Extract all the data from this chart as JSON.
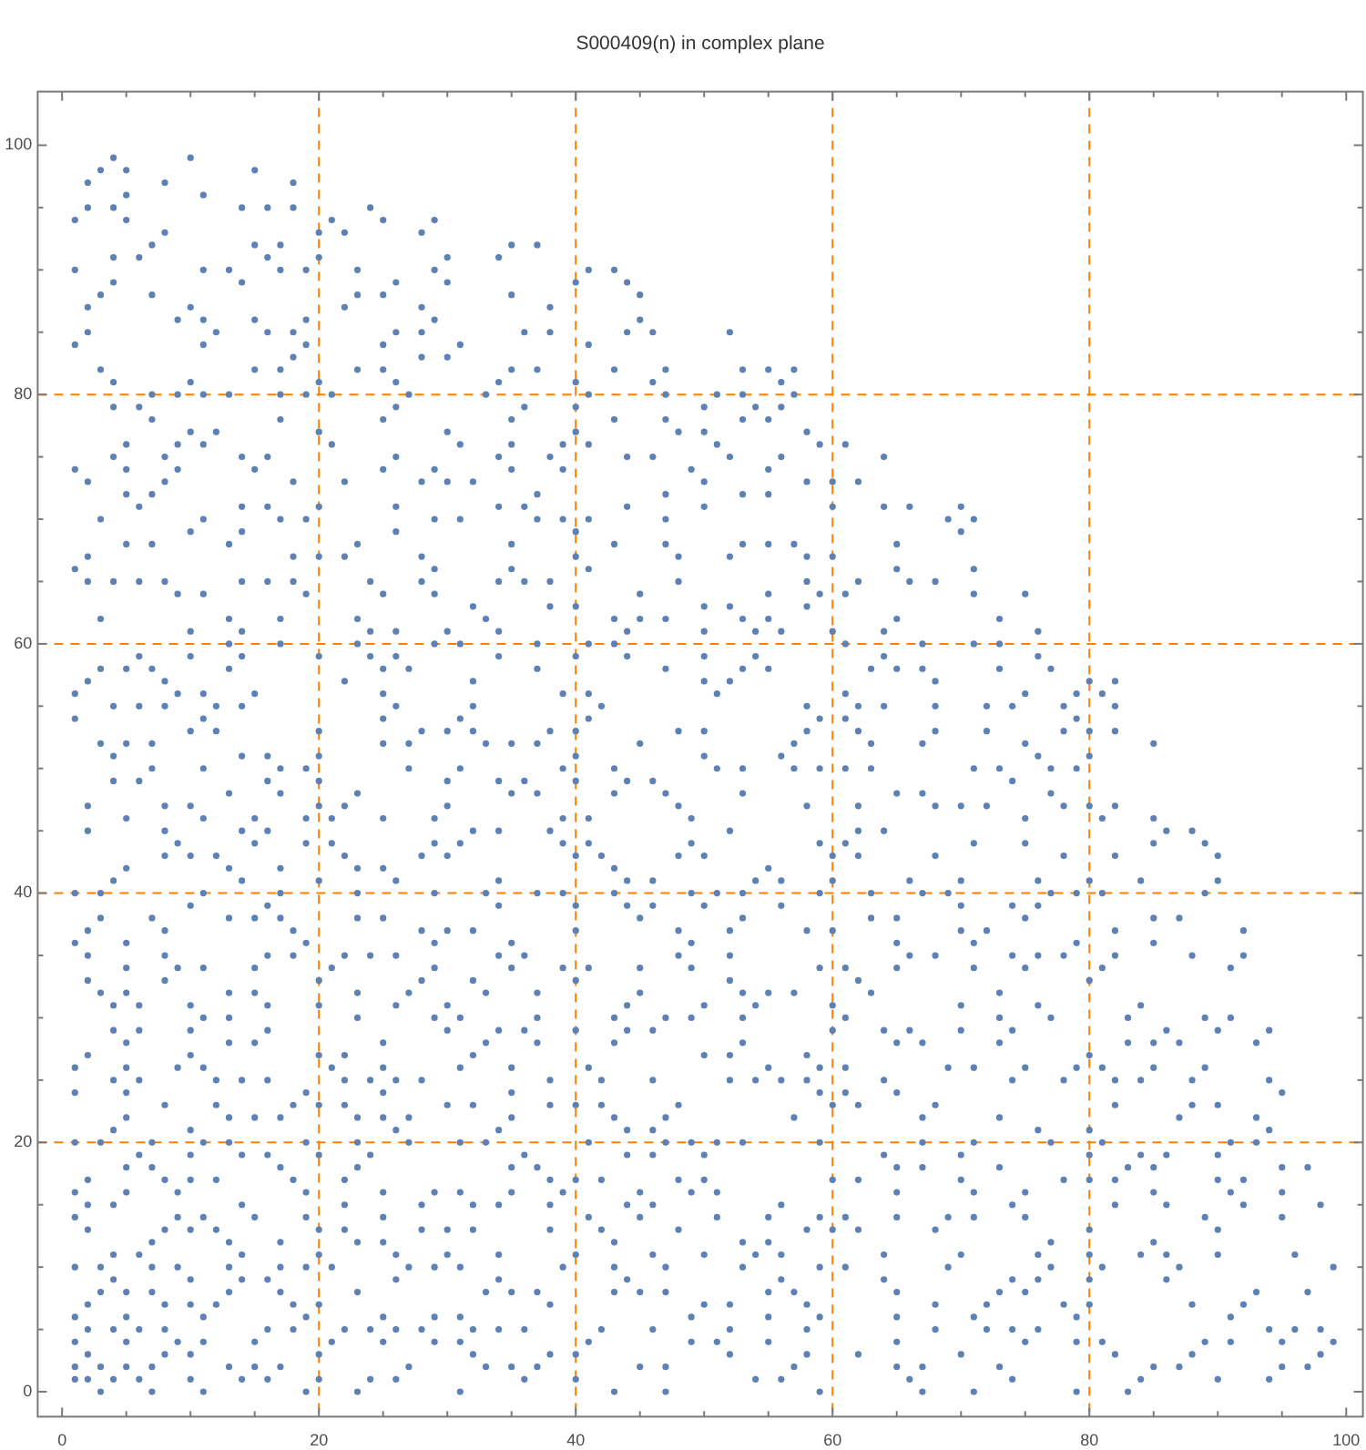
{
  "chart_data": {
    "type": "scatter",
    "title": "S000409(n) in complex plane",
    "color": "#5e81b5",
    "marker": "circle",
    "grid": true,
    "xlim": [
      -1.9,
      101.3
    ],
    "ylim": [
      -2,
      104.3
    ],
    "xticks": [
      0,
      {
        "value": 5,
        "label": null
      },
      {
        "value": 10,
        "label": null
      },
      {
        "value": 15,
        "label": null
      },
      20,
      {
        "value": 25,
        "label": null
      },
      {
        "value": 30,
        "label": null
      },
      {
        "value": 35,
        "label": null
      },
      40,
      {
        "value": 45,
        "label": null
      },
      {
        "value": 50,
        "label": null
      },
      {
        "value": 55,
        "label": null
      },
      60,
      {
        "value": 65,
        "label": null
      },
      {
        "value": 70,
        "label": null
      },
      {
        "value": 75,
        "label": null
      },
      80,
      {
        "value": 85,
        "label": null
      },
      {
        "value": 90,
        "label": null
      },
      {
        "value": 95,
        "label": null
      },
      100
    ],
    "yticks": [
      0,
      {
        "value": 5,
        "label": null
      },
      {
        "value": 10,
        "label": null
      },
      {
        "value": 15,
        "label": null
      },
      20,
      {
        "value": 25,
        "label": null
      },
      {
        "value": 30,
        "label": null
      },
      {
        "value": 35,
        "label": null
      },
      40,
      {
        "value": 45,
        "label": null
      },
      {
        "value": 50,
        "label": null
      },
      {
        "value": 55,
        "label": null
      },
      60,
      {
        "value": 65,
        "label": null
      },
      {
        "value": 70,
        "label": null
      },
      {
        "value": 75,
        "label": null
      },
      80,
      {
        "value": 85,
        "label": null
      },
      {
        "value": 90,
        "label": null
      },
      {
        "value": 95,
        "label": null
      },
      100
    ],
    "x": [
      4,
      10,
      3,
      5,
      15,
      2,
      8,
      18,
      5,
      11,
      2,
      4,
      14,
      16,
      18,
      24,
      1,
      5,
      21,
      25,
      29,
      8,
      20,
      22,
      28,
      7,
      15,
      17,
      35,
      37,
      4,
      6,
      16,
      20,
      30,
      34,
      1,
      11,
      13,
      17,
      19,
      23,
      29,
      41,
      43,
      4,
      14,
      26,
      30,
      40,
      44,
      3,
      7,
      23,
      25,
      35,
      45,
      2,
      10,
      22,
      28,
      38,
      9,
      11,
      15,
      19,
      29,
      45,
      2,
      12,
      16,
      18,
      26,
      28,
      36,
      38,
      44,
      46,
      52,
      1,
      11,
      19,
      25,
      31,
      41,
      18,
      28,
      30,
      3,
      15,
      17,
      23,
      25,
      35,
      37,
      43,
      47,
      53,
      55,
      57,
      4,
      10,
      20,
      26,
      34,
      40,
      46,
      56,
      7,
      9,
      11,
      13,
      17,
      19,
      21,
      27,
      33,
      41,
      47,
      51,
      53,
      57,
      4,
      6,
      26,
      36,
      40,
      50,
      54,
      56,
      7,
      17,
      25,
      35,
      43,
      47,
      53,
      55,
      10,
      12,
      20,
      30,
      40,
      48,
      50,
      58,
      5,
      9,
      11,
      21,
      31,
      35,
      39,
      41,
      51,
      59,
      61,
      4,
      8,
      14,
      16,
      26,
      34,
      38,
      44,
      46,
      52,
      56,
      64,
      1,
      5,
      9,
      15,
      25,
      29,
      35,
      39,
      49,
      55,
      2,
      8,
      18,
      22,
      28,
      30,
      32,
      50,
      58,
      60,
      62,
      5,
      7,
      37,
      47,
      53,
      55,
      6,
      14,
      16,
      20,
      26,
      34,
      36,
      44,
      50,
      60,
      64,
      66,
      70,
      3,
      11,
      17,
      19,
      29,
      31,
      37,
      39,
      41,
      47,
      69,
      71,
      10,
      14,
      26,
      40,
      70,
      5,
      7,
      13,
      23,
      35,
      43,
      47,
      53,
      55,
      57,
      65,
      2,
      18,
      20,
      22,
      28,
      40,
      48,
      52,
      58,
      60,
      1,
      29,
      35,
      41,
      65,
      71,
      2,
      4,
      6,
      8,
      14,
      16,
      18,
      24,
      28,
      34,
      36,
      38,
      48,
      58,
      62,
      66,
      68,
      9,
      11,
      19,
      25,
      29,
      45,
      55,
      59,
      61,
      71,
      75,
      32,
      38,
      40,
      50,
      52,
      58,
      3,
      13,
      17,
      23,
      33,
      43,
      45,
      47,
      53,
      55,
      65,
      73,
      10,
      14,
      24,
      26,
      30,
      34,
      44,
      50,
      54,
      56,
      60,
      64,
      76,
      13,
      17,
      23,
      29,
      31,
      37,
      41,
      43,
      61,
      67,
      71,
      73,
      6,
      10,
      14,
      20,
      24,
      26,
      34,
      40,
      44,
      50,
      54,
      64,
      76,
      3,
      5,
      7,
      13,
      25,
      27,
      37,
      47,
      53,
      55,
      63,
      65,
      67,
      73,
      77,
      2,
      8,
      22,
      32,
      50,
      52,
      68,
      80,
      82,
      1,
      9,
      11,
      15,
      25,
      39,
      41,
      51,
      61,
      75,
      79,
      81,
      4,
      6,
      8,
      12,
      14,
      26,
      32,
      42,
      58,
      62,
      64,
      68,
      72,
      74,
      78,
      82,
      1,
      11,
      25,
      31,
      41,
      59,
      61,
      79,
      10,
      12,
      20,
      28,
      30,
      32,
      38,
      40,
      48,
      50,
      58,
      62,
      68,
      72,
      78,
      80,
      82,
      3,
      5,
      7,
      25,
      27,
      33,
      35,
      37,
      45,
      57,
      63,
      67,
      75,
      85,
      4,
      14,
      16,
      20,
      40,
      50,
      56,
      76,
      80,
      7,
      11,
      17,
      19,
      27,
      31,
      39,
      43,
      51,
      53,
      57,
      59,
      61,
      63,
      71,
      73,
      77,
      79,
      4,
      6,
      16,
      20,
      30,
      34,
      36,
      40,
      44,
      46,
      74,
      13,
      17,
      23,
      35,
      37,
      43,
      47,
      53,
      65,
      67,
      77,
      2,
      8,
      10,
      20,
      22,
      30,
      48,
      58,
      62,
      68,
      70,
      72,
      78,
      80,
      82,
      5,
      11,
      15,
      19,
      21,
      25,
      29,
      39,
      41,
      49,
      75,
      81,
      85,
      2,
      8,
      14,
      16,
      32,
      34,
      38,
      52,
      62,
      64,
      86,
      88,
      9,
      15,
      19,
      21,
      29,
      31,
      39,
      41,
      49,
      59,
      61,
      71,
      75,
      85,
      89,
      8,
      10,
      12,
      22,
      28,
      30,
      40,
      42,
      48,
      50,
      60,
      62,
      68,
      78,
      82,
      90,
      5,
      13,
      17,
      23,
      25,
      43,
      55,
      4,
      14,
      20,
      26,
      34,
      44,
      46,
      54,
      56,
      60,
      66,
      70,
      76,
      80,
      84,
      90,
      1,
      3,
      11,
      17,
      23,
      29,
      33,
      37,
      39,
      43,
      49,
      51,
      53,
      59,
      63,
      67,
      69,
      77,
      79,
      81,
      89,
      10,
      16,
      34,
      40,
      44,
      46,
      50,
      56,
      70,
      74,
      76,
      3,
      7,
      13,
      15,
      17,
      23,
      25,
      45,
      53,
      63,
      65,
      75,
      85,
      87,
      2,
      8,
      18,
      28,
      30,
      32,
      40,
      48,
      52,
      58,
      60,
      70,
      72,
      82,
      92,
      1,
      5,
      19,
      29,
      35,
      49,
      65,
      71,
      79,
      85,
      2,
      8,
      16,
      18,
      22,
      24,
      26,
      34,
      36,
      48,
      52,
      66,
      68,
      74,
      76,
      78,
      82,
      88,
      92,
      5,
      9,
      11,
      15,
      21,
      29,
      35,
      39,
      41,
      45,
      49,
      59,
      61,
      65,
      71,
      75,
      81,
      91,
      2,
      8,
      20,
      28,
      32,
      40,
      52,
      62,
      80,
      3,
      5,
      13,
      15,
      23,
      27,
      33,
      37,
      45,
      53,
      55,
      57,
      63,
      73,
      4,
      6,
      10,
      16,
      20,
      26,
      30,
      44,
      50,
      54,
      60,
      70,
      76,
      84,
      11,
      13,
      23,
      29,
      31,
      37,
      43,
      47,
      49,
      53,
      61,
      73,
      77,
      83,
      89,
      91,
      4,
      6,
      10,
      16,
      30,
      34,
      36,
      40,
      44,
      46,
      60,
      64,
      66,
      70,
      74,
      86,
      90,
      94,
      5,
      13,
      15,
      25,
      33,
      37,
      43,
      53,
      65,
      67,
      73,
      83,
      85,
      87,
      93,
      2,
      10,
      20,
      22,
      32,
      50,
      52,
      58,
      80,
      1,
      5,
      9,
      11,
      21,
      25,
      31,
      35,
      41,
      55,
      59,
      61,
      69,
      71,
      75,
      79,
      81,
      85,
      89,
      4,
      6,
      12,
      14,
      16,
      22,
      24,
      26,
      28,
      38,
      42,
      46,
      52,
      54,
      56,
      58,
      64,
      74,
      78,
      82,
      84,
      88,
      94,
      1,
      5,
      19,
      25,
      35,
      59,
      61,
      65,
      95,
      8,
      12,
      18,
      20,
      22,
      30,
      32,
      38,
      40,
      42,
      48,
      60,
      62,
      68,
      82,
      88,
      90,
      5,
      13,
      15,
      17,
      23,
      25,
      27,
      35,
      43,
      47,
      57,
      67,
      73,
      87,
      93,
      4,
      10,
      26,
      34,
      44,
      46,
      76,
      80,
      94,
      1,
      3,
      7,
      11,
      13,
      19,
      23,
      27,
      31,
      33,
      41,
      47,
      49,
      51,
      53,
      59,
      67,
      71,
      77,
      81,
      91,
      93,
      6,
      10,
      14,
      16,
      20,
      24,
      36,
      44,
      46,
      50,
      64,
      70,
      80,
      84,
      86,
      90,
      5,
      7,
      17,
      23,
      35,
      37,
      65,
      67,
      73,
      83,
      85,
      95,
      97,
      2,
      8,
      10,
      12,
      18,
      22,
      38,
      40,
      42,
      48,
      50,
      60,
      62,
      70,
      78,
      80,
      82,
      90,
      92,
      1,
      5,
      9,
      19,
      25,
      29,
      31,
      35,
      39,
      45,
      49,
      51,
      65,
      71,
      75,
      85,
      91,
      95,
      2,
      4,
      14,
      22,
      28,
      32,
      34,
      38,
      44,
      46,
      56,
      74,
      82,
      86,
      92,
      98,
      1,
      9,
      11,
      15,
      19,
      25,
      41,
      45,
      51,
      55,
      59,
      61,
      65,
      69,
      71,
      75,
      89,
      95,
      2,
      8,
      10,
      12,
      20,
      22,
      28,
      30,
      32,
      38,
      42,
      48,
      58,
      60,
      62,
      68,
      80,
      90,
      7,
      13,
      17,
      23,
      25,
      43,
      53,
      55,
      77,
      85,
      4,
      6,
      14,
      20,
      26,
      30,
      34,
      40,
      46,
      50,
      54,
      56,
      64,
      70,
      76,
      80,
      84,
      86,
      90,
      96,
      1,
      3,
      7,
      9,
      13,
      17,
      19,
      21,
      27,
      29,
      31,
      39,
      43,
      47,
      53,
      59,
      61,
      69,
      77,
      81,
      87,
      99,
      4,
      10,
      14,
      16,
      26,
      34,
      44,
      56,
      64,
      74,
      76,
      80,
      86,
      3,
      5,
      7,
      13,
      17,
      23,
      33,
      35,
      37,
      43,
      45,
      47,
      55,
      57,
      65,
      73,
      75,
      93,
      97,
      2,
      8,
      10,
      12,
      18,
      20,
      38,
      50,
      52,
      58,
      68,
      72,
      78,
      80,
      88,
      92,
      1,
      5,
      11,
      19,
      25,
      29,
      31,
      49,
      55,
      59,
      65,
      71,
      79,
      91,
      2,
      4,
      6,
      8,
      16,
      18,
      22,
      24,
      26,
      28,
      32,
      34,
      36,
      42,
      46,
      52,
      58,
      68,
      72,
      74,
      76,
      94,
      96,
      98,
      1,
      5,
      9,
      11,
      15,
      21,
      25,
      29,
      31,
      41,
      49,
      51,
      55,
      65,
      75,
      79,
      81,
      89,
      91,
      95,
      99,
      2,
      8,
      10,
      20,
      32,
      38,
      40,
      52,
      58,
      62,
      70,
      82,
      88,
      98,
      1,
      3,
      5,
      7,
      13,
      15,
      17,
      27,
      33,
      35,
      37,
      45,
      47,
      57,
      65,
      67,
      73,
      85,
      87,
      95,
      97,
      1,
      2,
      4,
      6,
      10,
      14,
      16,
      20,
      24,
      26,
      36,
      40,
      54,
      56,
      66,
      74,
      84,
      90,
      94,
      3,
      7,
      11,
      19,
      23,
      31,
      43,
      47,
      59,
      67,
      71,
      79,
      83
    ],
    "values": [
      99,
      99,
      98,
      98,
      98,
      97,
      97,
      97,
      96,
      96,
      95,
      95,
      95,
      95,
      95,
      95,
      94,
      94,
      94,
      94,
      94,
      93,
      93,
      93,
      93,
      92,
      92,
      92,
      92,
      92,
      91,
      91,
      91,
      91,
      91,
      91,
      90,
      90,
      90,
      90,
      90,
      90,
      90,
      90,
      90,
      89,
      89,
      89,
      89,
      89,
      89,
      88,
      88,
      88,
      88,
      88,
      88,
      87,
      87,
      87,
      87,
      87,
      86,
      86,
      86,
      86,
      86,
      86,
      85,
      85,
      85,
      85,
      85,
      85,
      85,
      85,
      85,
      85,
      85,
      84,
      84,
      84,
      84,
      84,
      84,
      83,
      83,
      83,
      82,
      82,
      82,
      82,
      82,
      82,
      82,
      82,
      82,
      82,
      82,
      82,
      81,
      81,
      81,
      81,
      81,
      81,
      81,
      81,
      80,
      80,
      80,
      80,
      80,
      80,
      80,
      80,
      80,
      80,
      80,
      80,
      80,
      80,
      79,
      79,
      79,
      79,
      79,
      79,
      79,
      79,
      78,
      78,
      78,
      78,
      78,
      78,
      78,
      78,
      77,
      77,
      77,
      77,
      77,
      77,
      77,
      77,
      76,
      76,
      76,
      76,
      76,
      76,
      76,
      76,
      76,
      76,
      76,
      75,
      75,
      75,
      75,
      75,
      75,
      75,
      75,
      75,
      75,
      75,
      75,
      74,
      74,
      74,
      74,
      74,
      74,
      74,
      74,
      74,
      74,
      73,
      73,
      73,
      73,
      73,
      73,
      73,
      73,
      73,
      73,
      73,
      72,
      72,
      72,
      72,
      72,
      72,
      71,
      71,
      71,
      71,
      71,
      71,
      71,
      71,
      71,
      71,
      71,
      71,
      71,
      70,
      70,
      70,
      70,
      70,
      70,
      70,
      70,
      70,
      70,
      70,
      70,
      69,
      69,
      69,
      69,
      69,
      68,
      68,
      68,
      68,
      68,
      68,
      68,
      68,
      68,
      68,
      68,
      67,
      67,
      67,
      67,
      67,
      67,
      67,
      67,
      67,
      67,
      66,
      66,
      66,
      66,
      66,
      66,
      65,
      65,
      65,
      65,
      65,
      65,
      65,
      65,
      65,
      65,
      65,
      65,
      65,
      65,
      65,
      65,
      65,
      64,
      64,
      64,
      64,
      64,
      64,
      64,
      64,
      64,
      64,
      64,
      63,
      63,
      63,
      63,
      63,
      63,
      62,
      62,
      62,
      62,
      62,
      62,
      62,
      62,
      62,
      62,
      62,
      62,
      61,
      61,
      61,
      61,
      61,
      61,
      61,
      61,
      61,
      61,
      61,
      61,
      61,
      60,
      60,
      60,
      60,
      60,
      60,
      60,
      60,
      60,
      60,
      60,
      60,
      59,
      59,
      59,
      59,
      59,
      59,
      59,
      59,
      59,
      59,
      59,
      59,
      59,
      58,
      58,
      58,
      58,
      58,
      58,
      58,
      58,
      58,
      58,
      58,
      58,
      58,
      58,
      58,
      57,
      57,
      57,
      57,
      57,
      57,
      57,
      57,
      57,
      56,
      56,
      56,
      56,
      56,
      56,
      56,
      56,
      56,
      56,
      56,
      56,
      55,
      55,
      55,
      55,
      55,
      55,
      55,
      55,
      55,
      55,
      55,
      55,
      55,
      55,
      55,
      55,
      54,
      54,
      54,
      54,
      54,
      54,
      54,
      54,
      53,
      53,
      53,
      53,
      53,
      53,
      53,
      53,
      53,
      53,
      53,
      53,
      53,
      53,
      53,
      53,
      53,
      52,
      52,
      52,
      52,
      52,
      52,
      52,
      52,
      52,
      52,
      52,
      52,
      52,
      52,
      51,
      51,
      51,
      51,
      51,
      51,
      51,
      51,
      51,
      50,
      50,
      50,
      50,
      50,
      50,
      50,
      50,
      50,
      50,
      50,
      50,
      50,
      50,
      50,
      50,
      50,
      50,
      49,
      49,
      49,
      49,
      49,
      49,
      49,
      49,
      49,
      49,
      49,
      48,
      48,
      48,
      48,
      48,
      48,
      48,
      48,
      48,
      48,
      48,
      47,
      47,
      47,
      47,
      47,
      47,
      47,
      47,
      47,
      47,
      47,
      47,
      47,
      47,
      47,
      46,
      46,
      46,
      46,
      46,
      46,
      46,
      46,
      46,
      46,
      46,
      46,
      46,
      45,
      45,
      45,
      45,
      45,
      45,
      45,
      45,
      45,
      45,
      45,
      45,
      44,
      44,
      44,
      44,
      44,
      44,
      44,
      44,
      44,
      44,
      44,
      44,
      44,
      44,
      44,
      43,
      43,
      43,
      43,
      43,
      43,
      43,
      43,
      43,
      43,
      43,
      43,
      43,
      43,
      43,
      43,
      42,
      42,
      42,
      42,
      42,
      42,
      42,
      41,
      41,
      41,
      41,
      41,
      41,
      41,
      41,
      41,
      41,
      41,
      41,
      41,
      41,
      41,
      41,
      40,
      40,
      40,
      40,
      40,
      40,
      40,
      40,
      40,
      40,
      40,
      40,
      40,
      40,
      40,
      40,
      40,
      40,
      40,
      40,
      40,
      39,
      39,
      39,
      39,
      39,
      39,
      39,
      39,
      39,
      39,
      39,
      38,
      38,
      38,
      38,
      38,
      38,
      38,
      38,
      38,
      38,
      38,
      38,
      38,
      38,
      37,
      37,
      37,
      37,
      37,
      37,
      37,
      37,
      37,
      37,
      37,
      37,
      37,
      37,
      37,
      36,
      36,
      36,
      36,
      36,
      36,
      36,
      36,
      36,
      36,
      35,
      35,
      35,
      35,
      35,
      35,
      35,
      35,
      35,
      35,
      35,
      35,
      35,
      35,
      35,
      35,
      35,
      35,
      35,
      34,
      34,
      34,
      34,
      34,
      34,
      34,
      34,
      34,
      34,
      34,
      34,
      34,
      34,
      34,
      34,
      34,
      34,
      33,
      33,
      33,
      33,
      33,
      33,
      33,
      33,
      33,
      32,
      32,
      32,
      32,
      32,
      32,
      32,
      32,
      32,
      32,
      32,
      32,
      32,
      32,
      31,
      31,
      31,
      31,
      31,
      31,
      31,
      31,
      31,
      31,
      31,
      31,
      31,
      31,
      30,
      30,
      30,
      30,
      30,
      30,
      30,
      30,
      30,
      30,
      30,
      30,
      30,
      30,
      30,
      30,
      29,
      29,
      29,
      29,
      29,
      29,
      29,
      29,
      29,
      29,
      29,
      29,
      29,
      29,
      29,
      29,
      29,
      29,
      28,
      28,
      28,
      28,
      28,
      28,
      28,
      28,
      28,
      28,
      28,
      28,
      28,
      28,
      28,
      27,
      27,
      27,
      27,
      27,
      27,
      27,
      27,
      27,
      26,
      26,
      26,
      26,
      26,
      26,
      26,
      26,
      26,
      26,
      26,
      26,
      26,
      26,
      26,
      26,
      26,
      26,
      26,
      25,
      25,
      25,
      25,
      25,
      25,
      25,
      25,
      25,
      25,
      25,
      25,
      25,
      25,
      25,
      25,
      25,
      25,
      25,
      25,
      25,
      25,
      25,
      24,
      24,
      24,
      24,
      24,
      24,
      24,
      24,
      24,
      23,
      23,
      23,
      23,
      23,
      23,
      23,
      23,
      23,
      23,
      23,
      23,
      23,
      23,
      23,
      23,
      23,
      22,
      22,
      22,
      22,
      22,
      22,
      22,
      22,
      22,
      22,
      22,
      22,
      22,
      22,
      22,
      21,
      21,
      21,
      21,
      21,
      21,
      21,
      21,
      21,
      20,
      20,
      20,
      20,
      20,
      20,
      20,
      20,
      20,
      20,
      20,
      20,
      20,
      20,
      20,
      20,
      20,
      20,
      20,
      20,
      20,
      20,
      19,
      19,
      19,
      19,
      19,
      19,
      19,
      19,
      19,
      19,
      19,
      19,
      19,
      19,
      19,
      19,
      18,
      18,
      18,
      18,
      18,
      18,
      18,
      18,
      18,
      18,
      18,
      18,
      18,
      17,
      17,
      17,
      17,
      17,
      17,
      17,
      17,
      17,
      17,
      17,
      17,
      17,
      17,
      17,
      17,
      17,
      17,
      17,
      16,
      16,
      16,
      16,
      16,
      16,
      16,
      16,
      16,
      16,
      16,
      16,
      16,
      16,
      16,
      16,
      16,
      16,
      15,
      15,
      15,
      15,
      15,
      15,
      15,
      15,
      15,
      15,
      15,
      15,
      15,
      15,
      15,
      15,
      14,
      14,
      14,
      14,
      14,
      14,
      14,
      14,
      14,
      14,
      14,
      14,
      14,
      14,
      14,
      14,
      14,
      14,
      13,
      13,
      13,
      13,
      13,
      13,
      13,
      13,
      13,
      13,
      13,
      13,
      13,
      13,
      13,
      13,
      13,
      13,
      12,
      12,
      12,
      12,
      12,
      12,
      12,
      12,
      12,
      12,
      11,
      11,
      11,
      11,
      11,
      11,
      11,
      11,
      11,
      11,
      11,
      11,
      11,
      11,
      11,
      11,
      11,
      11,
      11,
      11,
      10,
      10,
      10,
      10,
      10,
      10,
      10,
      10,
      10,
      10,
      10,
      10,
      10,
      10,
      10,
      10,
      10,
      10,
      10,
      10,
      10,
      10,
      9,
      9,
      9,
      9,
      9,
      9,
      9,
      9,
      9,
      9,
      9,
      9,
      9,
      8,
      8,
      8,
      8,
      8,
      8,
      8,
      8,
      8,
      8,
      8,
      8,
      8,
      8,
      8,
      8,
      8,
      8,
      8,
      7,
      7,
      7,
      7,
      7,
      7,
      7,
      7,
      7,
      7,
      7,
      7,
      7,
      7,
      7,
      7,
      6,
      6,
      6,
      6,
      6,
      6,
      6,
      6,
      6,
      6,
      6,
      6,
      6,
      6,
      5,
      5,
      5,
      5,
      5,
      5,
      5,
      5,
      5,
      5,
      5,
      5,
      5,
      5,
      5,
      5,
      5,
      5,
      5,
      5,
      5,
      5,
      5,
      5,
      4,
      4,
      4,
      4,
      4,
      4,
      4,
      4,
      4,
      4,
      4,
      4,
      4,
      4,
      4,
      4,
      4,
      4,
      4,
      4,
      4,
      3,
      3,
      3,
      3,
      3,
      3,
      3,
      3,
      3,
      3,
      3,
      3,
      3,
      3,
      2,
      2,
      2,
      2,
      2,
      2,
      2,
      2,
      2,
      2,
      2,
      2,
      2,
      2,
      2,
      2,
      2,
      2,
      2,
      2,
      2,
      1,
      1,
      1,
      1,
      1,
      1,
      1,
      1,
      1,
      1,
      1,
      1,
      1,
      1,
      1,
      1,
      1,
      1,
      1,
      0,
      0,
      0,
      0,
      0,
      0,
      0,
      0,
      0,
      0,
      0,
      0,
      0
    ]
  }
}
